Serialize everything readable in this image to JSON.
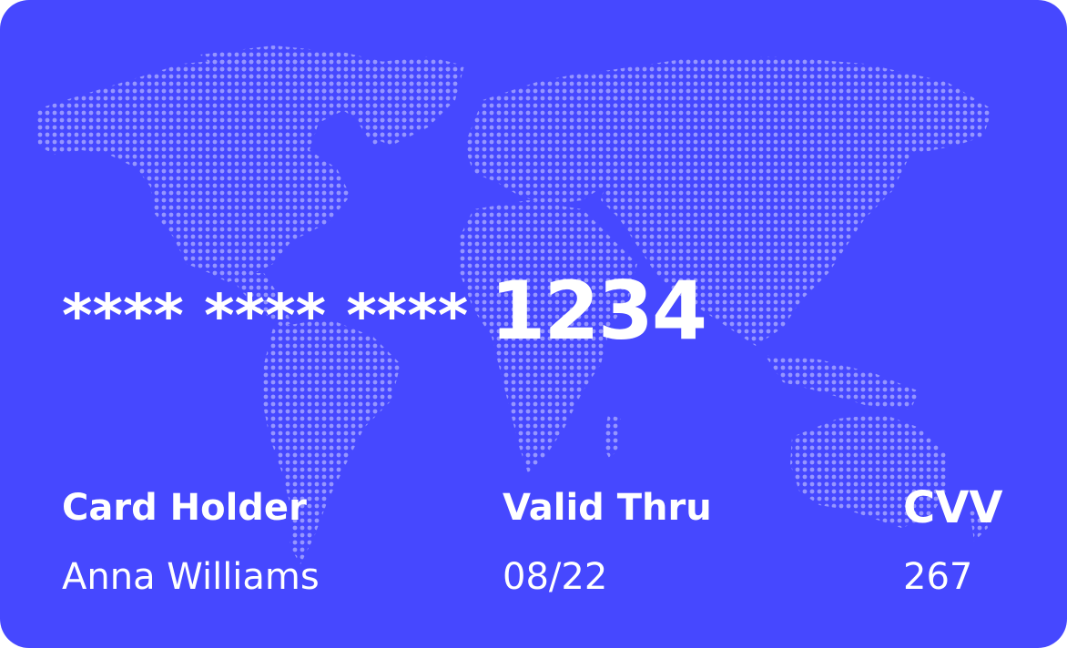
{
  "card": {
    "background_color": "#4648ff",
    "map_color": "#8d8dff",
    "number_mask": "**** **** ****",
    "number_last4": "1234",
    "holder_label": "Card Holder",
    "holder_value": "Anna Williams",
    "valid_label": "Valid Thru",
    "valid_value": "08/22",
    "cvv_label": "CVV",
    "cvv_value": "267"
  }
}
